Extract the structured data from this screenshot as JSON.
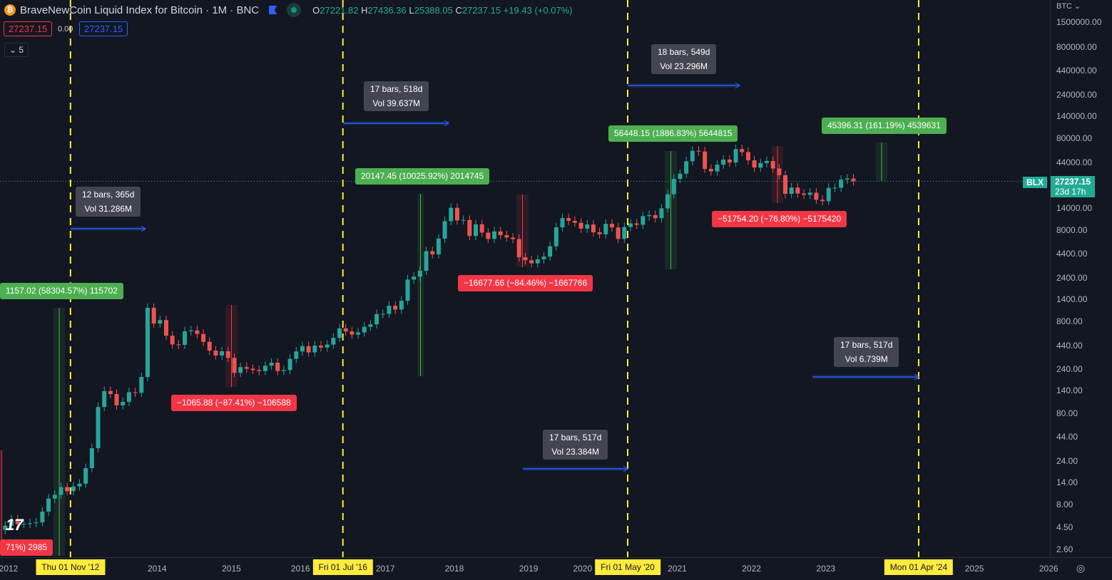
{
  "header": {
    "symbol_title": "BraveNewCoin Liquid Index for Bitcoin · 1M · BNC",
    "o_label": "O",
    "o": "27221.82",
    "h_label": "H",
    "h": "27436.36",
    "l_label": "L",
    "l": "25388.05",
    "c_label": "C",
    "c": "27237.15",
    "change": "+19.43 (+0.07%)",
    "bid": "27237.15",
    "spread": "0.00",
    "ask": "27237.15",
    "indicators_toggle": "5"
  },
  "axis": {
    "currency": "BTC",
    "price_ticks": [
      "1500000.00",
      "800000.00",
      "440000.00",
      "240000.00",
      "140000.00",
      "80000.00",
      "44000.00",
      "14000.00",
      "8000.00",
      "4400.00",
      "2400.00",
      "1400.00",
      "800.00",
      "440.00",
      "240.00",
      "140.00",
      "80.00",
      "44.00",
      "24.00",
      "14.00",
      "8.00",
      "4.50",
      "2.60"
    ],
    "last_price": "27237.15",
    "countdown": "23d 17h",
    "symbol_tag": "BLX",
    "time_ticks": [
      "2012",
      "2014",
      "2015",
      "2016",
      "2017",
      "2018",
      "2019",
      "2020",
      "2021",
      "2022",
      "2023",
      "2025",
      "2026"
    ]
  },
  "vlines": [
    "Thu 01 Nov '12",
    "Fri 01 Jul '16",
    "Fri 01 May '20",
    "Mon 01 Apr '24"
  ],
  "date_ranges": [
    {
      "bars": "12 bars, 365d",
      "vol": "Vol 31.286M"
    },
    {
      "bars": "17 bars, 518d",
      "vol": "Vol 39.637M"
    },
    {
      "bars": "18 bars, 549d",
      "vol": "Vol 23.296M"
    },
    {
      "bars": "17 bars, 517d",
      "vol": "Vol 6.739M"
    },
    {
      "bars": "17 bars, 517d",
      "vol": "Vol 23.384M"
    }
  ],
  "price_ranges": [
    {
      "text": "1157.02 (58304.57%) 115702",
      "dir": "up"
    },
    {
      "text": "−1065.88 (−87.41%) −106588",
      "dir": "down"
    },
    {
      "text": "20147.45 (10025.92%) 2014745",
      "dir": "up"
    },
    {
      "text": "−16677.66 (−84.46%) −1667766",
      "dir": "down"
    },
    {
      "text": "56448.15 (1886.83%) 5644815",
      "dir": "up"
    },
    {
      "text": "−51754.20 (−76.80%) −5175420",
      "dir": "down"
    },
    {
      "text": "45396.31 (161.19%) 4539631",
      "dir": "up"
    },
    {
      "text": "71%) 2985",
      "dir": "down"
    }
  ],
  "colors": {
    "up": "#26a69a",
    "down": "#ef5350",
    "background": "#131722",
    "vline": "#ffeb3b",
    "range": "#2962ff"
  },
  "chart_data": {
    "type": "candlestick",
    "interval": "1M",
    "scale": "log",
    "start": "2011-12",
    "ylim": [
      2.6,
      1500000
    ],
    "closes": [
      4.7,
      5.5,
      4.9,
      4.9,
      5.0,
      5.1,
      6.7,
      9.3,
      10.2,
      12.4,
      11.2,
      12.6,
      13.5,
      20,
      33,
      93,
      139,
      129,
      97,
      106,
      135,
      133,
      198,
      1130,
      760,
      830,
      560,
      450,
      445,
      625,
      640,
      585,
      480,
      385,
      340,
      378,
      320,
      220,
      254,
      244,
      236,
      230,
      263,
      284,
      230,
      236,
      313,
      377,
      430,
      368,
      437,
      416,
      448,
      531,
      673,
      624,
      575,
      609,
      700,
      745,
      964,
      970,
      1190,
      1080,
      1350,
      2300,
      2480,
      2870,
      4700,
      4340,
      6450,
      10000,
      14000,
      10200,
      10300,
      6900,
      9240,
      7500,
      6400,
      7730,
      7030,
      6630,
      6370,
      4040,
      3740,
      3460,
      3830,
      4100,
      5320,
      8560,
      10800,
      10080,
      9600,
      8290,
      9200,
      7560,
      7190,
      9350,
      8540,
      6410,
      8630,
      9450,
      9140,
      11350,
      11650,
      10780,
      13800,
      19700,
      29000,
      33100,
      45200,
      58800,
      57700,
      37300,
      35000,
      41500,
      47100,
      43800,
      61300,
      57000,
      46300,
      38500,
      43200,
      45500,
      37700,
      31800,
      19900,
      23300,
      20050,
      19400,
      20500,
      17150,
      16550,
      23100,
      23150,
      28450,
      29250,
      27237.15
    ]
  }
}
